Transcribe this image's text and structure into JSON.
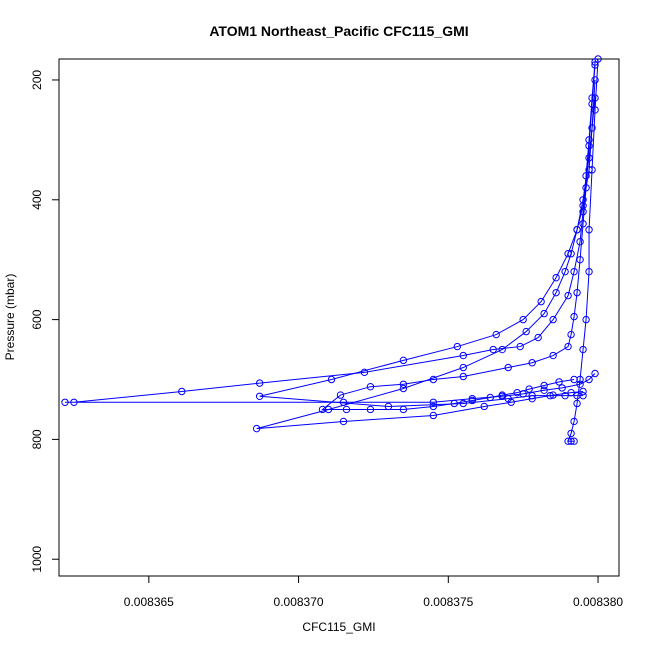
{
  "chart_data": {
    "type": "scatter",
    "title": "ATOM1 Northeast_Pacific CFC115_GMI",
    "xlabel": "CFC115_GMI",
    "ylabel": "Pressure (mbar)",
    "xlim": [
      0.008362,
      0.0083807
    ],
    "ylim": [
      1028,
      165
    ],
    "y_reversed": true,
    "x_ticks": [
      0.008365,
      0.00837,
      0.008375,
      0.00838
    ],
    "x_tick_labels": [
      "0.008365",
      "0.008370",
      "0.008375",
      "0.008380"
    ],
    "y_ticks": [
      200,
      400,
      600,
      800,
      1000
    ],
    "y_tick_labels": [
      "200",
      "400",
      "600",
      "800",
      "1000"
    ],
    "grid": false,
    "color": "#0000ff",
    "series": [
      {
        "x": [
          0.0083799,
          0.0083798,
          0.0083797,
          0.0083796,
          0.0083795,
          0.0083794,
          0.0083792,
          0.008379,
          0.0083785,
          0.008378,
          0.0083774,
          0.0083765,
          0.0083755,
          0.0083722,
          0.0083687,
          0.0083661,
          0.0083625,
          0.0083622,
          0.0083715,
          0.0083745,
          0.0083758,
          0.0083768,
          0.0083775,
          0.0083782,
          0.0083788,
          0.0083794,
          0.0083797,
          0.0083799
        ],
        "y": [
          170,
          230,
          300,
          360,
          420,
          470,
          520,
          560,
          600,
          630,
          645,
          650,
          660,
          688,
          706,
          720,
          738,
          738,
          738,
          738,
          732,
          728,
          724,
          718,
          714,
          708,
          700,
          690
        ]
      },
      {
        "x": [
          0.0083799,
          0.0083798,
          0.0083797,
          0.0083796,
          0.0083795,
          0.0083794,
          0.0083793,
          0.0083792,
          0.0083791,
          0.008379,
          0.0083785,
          0.0083778,
          0.008377,
          0.0083755,
          0.0083745,
          0.0083735,
          0.0083724,
          0.0083714,
          0.0083708,
          0.0083716,
          0.0083724,
          0.0083735,
          0.0083745,
          0.0083752,
          0.0083758,
          0.0083764,
          0.0083768,
          0.0083773,
          0.0083777,
          0.0083782,
          0.0083787,
          0.0083792
        ],
        "y": [
          175,
          240,
          310,
          380,
          440,
          500,
          555,
          595,
          625,
          645,
          660,
          672,
          680,
          695,
          700,
          708,
          712,
          726,
          750,
          750,
          750,
          750,
          745,
          740,
          735,
          730,
          726,
          722,
          716,
          710,
          704,
          700
        ]
      },
      {
        "x": [
          0.0083799,
          0.0083798,
          0.0083797,
          0.0083795,
          0.0083793,
          0.008379,
          0.0083786,
          0.0083781,
          0.0083775,
          0.0083766,
          0.0083753,
          0.0083735,
          0.0083711,
          0.0083687,
          0.008373,
          0.0083755,
          0.008377,
          0.0083778,
          0.0083784,
          0.0083789,
          0.0083793,
          0.0083795
        ],
        "y": [
          200,
          280,
          350,
          410,
          450,
          490,
          530,
          570,
          600,
          625,
          645,
          668,
          700,
          728,
          745,
          740,
          732,
          727,
          727,
          727,
          727,
          727
        ]
      },
      {
        "x": [
          0.0083799,
          0.0083797,
          0.0083795,
          0.0083793,
          0.0083791,
          0.0083789,
          0.0083786,
          0.0083782,
          0.0083776,
          0.0083768,
          0.0083755,
          0.0083735,
          0.008371,
          0.0083686,
          0.0083715,
          0.0083745,
          0.0083762,
          0.0083771,
          0.0083778,
          0.0083785,
          0.0083791,
          0.0083795
        ],
        "y": [
          230,
          330,
          400,
          450,
          490,
          520,
          555,
          590,
          620,
          650,
          680,
          715,
          750,
          782,
          770,
          760,
          745,
          738,
          732,
          726,
          722,
          720
        ]
      },
      {
        "x": [
          0.00838,
          0.0083799,
          0.0083798,
          0.0083797,
          0.0083797,
          0.0083796,
          0.0083795,
          0.0083794,
          0.0083793,
          0.0083792,
          0.0083791,
          0.008379,
          0.0083791,
          0.0083792
        ],
        "y": [
          165,
          250,
          350,
          450,
          520,
          600,
          650,
          700,
          740,
          770,
          790,
          803,
          803,
          803
        ]
      }
    ]
  }
}
